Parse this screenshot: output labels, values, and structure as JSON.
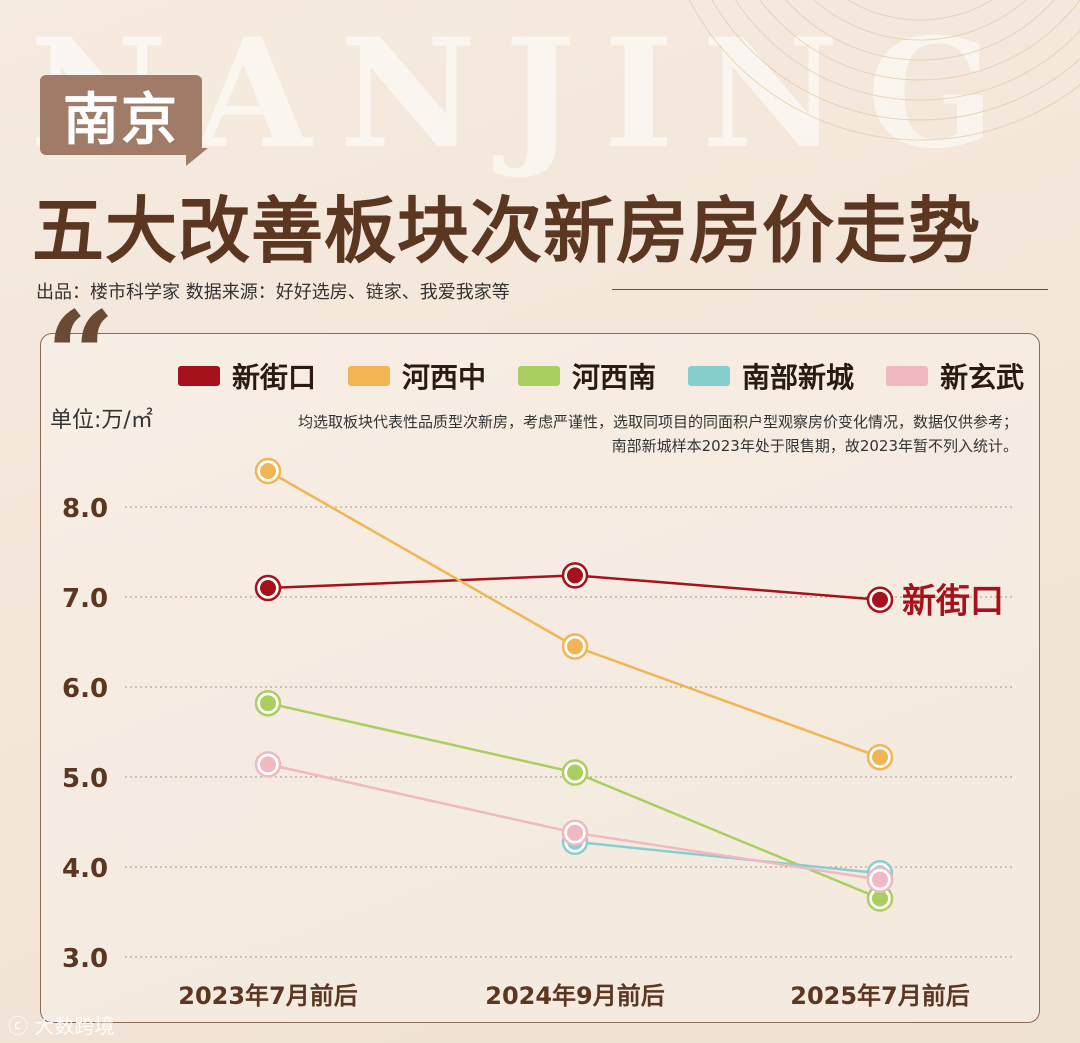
{
  "header": {
    "watermark": "NANJING",
    "badge": "南京",
    "title": "五大改善板块次新房房价走势",
    "credits": "出品：楼市科学家 数据来源：好好选房、链家、我爱我家等"
  },
  "quote_icon": "quote-mark-icon",
  "footer": {
    "watermark": "大数跨境"
  },
  "chart_data": {
    "type": "line",
    "unit_label": "单位:万/㎡",
    "note_lines": [
      "均选取板块代表性品质型次新房，考虑严谨性，选取同项目的同面积户型观察房价变化情况，数据仅供参考；",
      "南部新城样本2023年处于限售期，故2023年暂不列入统计。"
    ],
    "categories": [
      "2023年7月前后",
      "2024年9月前后",
      "2025年7月前后"
    ],
    "ylim": [
      3.0,
      8.0
    ],
    "yticks": [
      "8.0",
      "7.0",
      "6.0",
      "5.0",
      "4.0",
      "3.0"
    ],
    "grid": true,
    "legend_position": "top",
    "series": [
      {
        "name": "新街口",
        "color": "#a5121b",
        "values": [
          7.1,
          7.24,
          6.97
        ],
        "end_label": "新街口"
      },
      {
        "name": "河西中",
        "color": "#f2b554",
        "values": [
          8.4,
          6.45,
          5.22
        ]
      },
      {
        "name": "河西南",
        "color": "#aacf5e",
        "values": [
          5.82,
          5.05,
          3.65
        ]
      },
      {
        "name": "南部新城",
        "color": "#87cfcf",
        "values": [
          null,
          4.28,
          3.93
        ]
      },
      {
        "name": "新玄武",
        "color": "#f0b8c0",
        "values": [
          5.14,
          4.38,
          3.86
        ]
      }
    ]
  }
}
